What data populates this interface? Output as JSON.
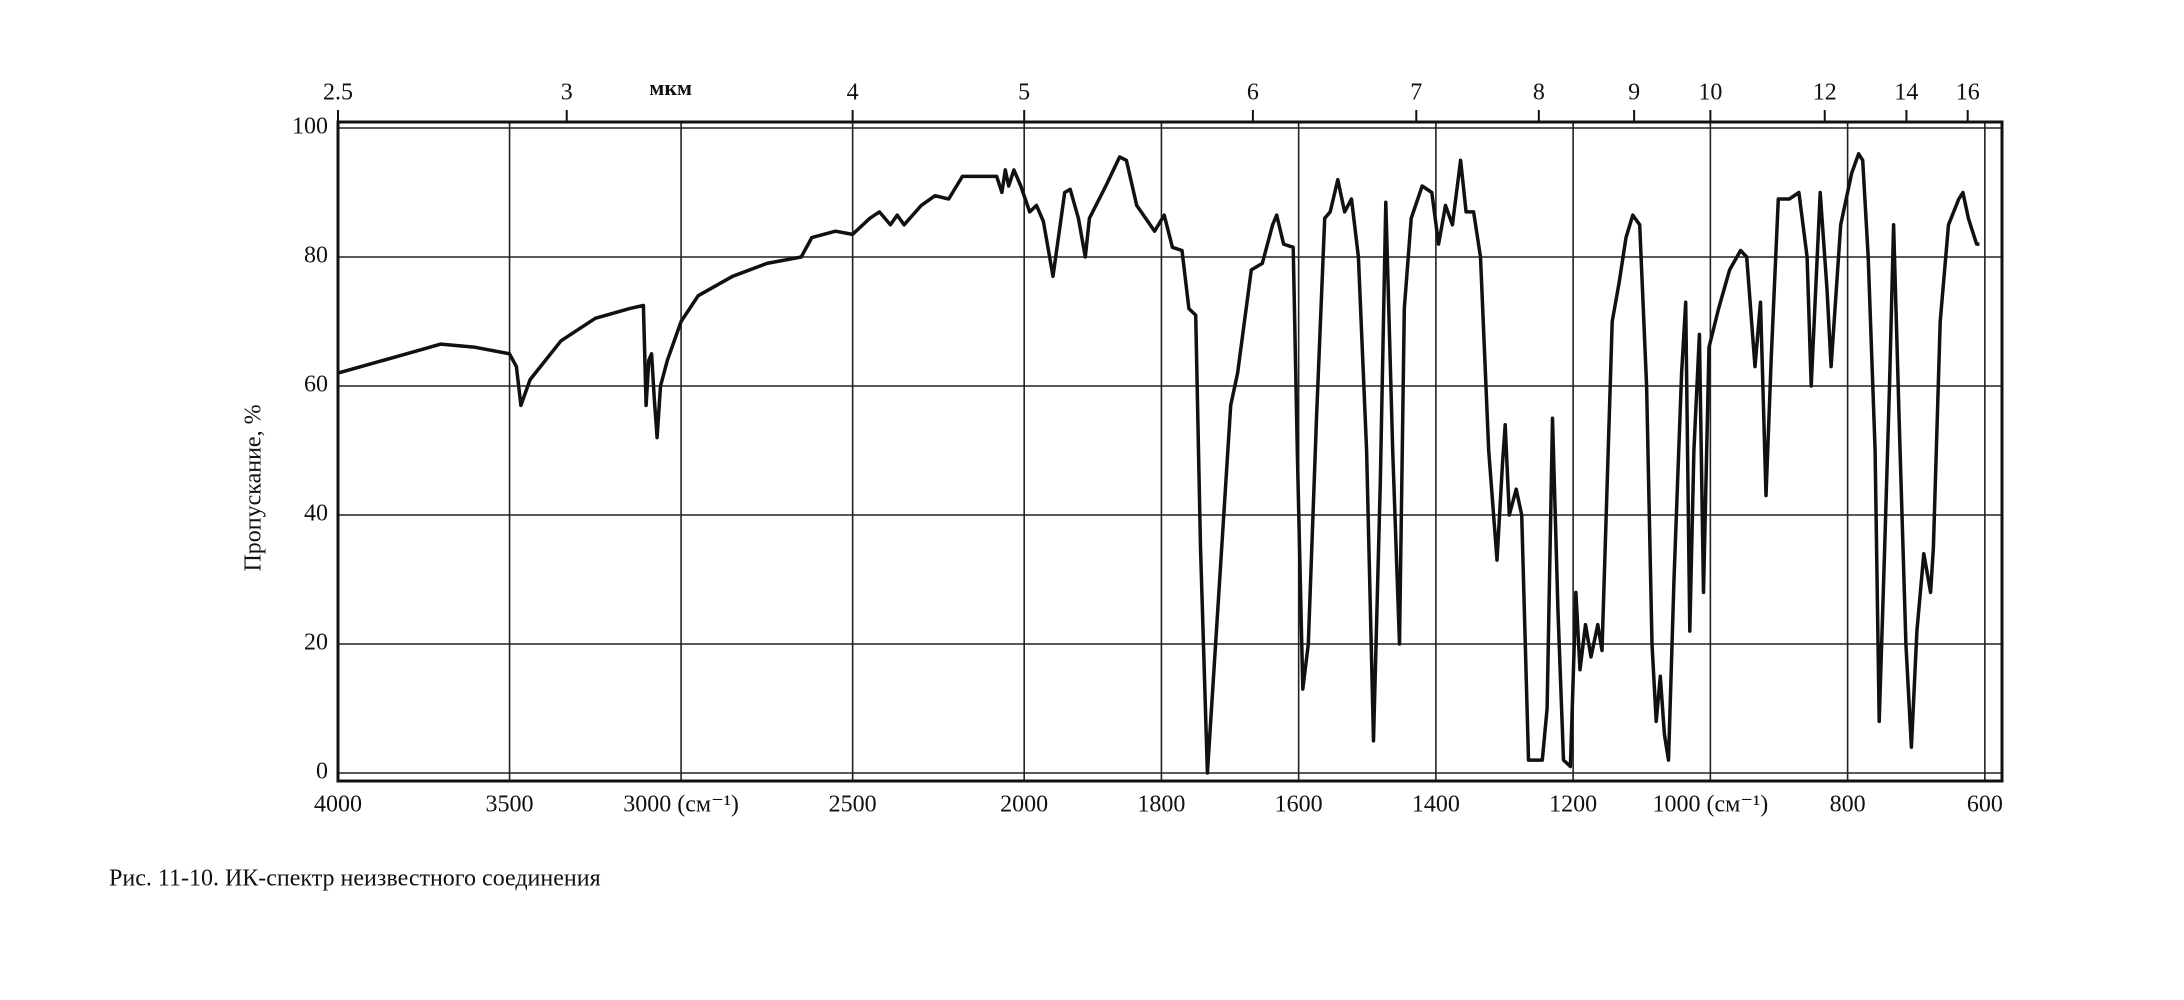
{
  "chart_data": {
    "type": "line",
    "caption": "Рис. 11-10.  ИК-спектр неизвестного соединения",
    "ylabel": "Пропускание, %",
    "xlim": [
      4000,
      575
    ],
    "xscale": {
      "type": "piecewise",
      "break": 2000,
      "factor": 2
    },
    "xticks": [
      4000,
      3500,
      {
        "value": 3000,
        "label": "3000 (см⁻¹)"
      },
      2500,
      2000,
      1800,
      1600,
      1400,
      1200,
      {
        "value": 1000,
        "label": "1000 (см⁻¹)"
      },
      800,
      600
    ],
    "ylim": [
      0,
      100
    ],
    "yticks": [
      0,
      20,
      40,
      60,
      80,
      100
    ],
    "grid": true,
    "color": "#111111",
    "top_axis": {
      "label": "мкм",
      "ticks": [
        2.5,
        3,
        4,
        5,
        6,
        7,
        8,
        9,
        10,
        12,
        14,
        16
      ]
    },
    "x": [
      4000,
      3800,
      3700,
      3600,
      3500,
      3480,
      3467,
      3440,
      3350,
      3250,
      3150,
      3110,
      3102,
      3094,
      3086,
      3078,
      3070,
      3060,
      3040,
      3000,
      2950,
      2850,
      2750,
      2650,
      2619,
      2550,
      2500,
      2450,
      2422,
      2390,
      2370,
      2350,
      2300,
      2260,
      2220,
      2180,
      2080,
      2065,
      2055,
      2045,
      2030,
      2010,
      1992,
      1982,
      1972,
      1958,
      1941,
      1933,
      1921,
      1911,
      1905,
      1881,
      1861,
      1851,
      1836,
      1810,
      1796,
      1784,
      1770,
      1760,
      1750,
      1743,
      1733,
      1727,
      1715,
      1699,
      1689,
      1669,
      1653,
      1638,
      1632,
      1622,
      1608,
      1602,
      1594,
      1586,
      1574,
      1562,
      1554,
      1543,
      1533,
      1523,
      1513,
      1501,
      1491,
      1481,
      1473,
      1463,
      1453,
      1446,
      1436,
      1420,
      1406,
      1396,
      1386,
      1376,
      1364,
      1356,
      1345,
      1335,
      1323,
      1311,
      1303,
      1299,
      1293,
      1283,
      1275,
      1265,
      1245,
      1238,
      1230,
      1222,
      1214,
      1204,
      1196,
      1190,
      1182,
      1174,
      1164,
      1158,
      1143,
      1133,
      1123,
      1113,
      1103,
      1093,
      1085,
      1079,
      1073,
      1067,
      1061,
      1053,
      1042,
      1036,
      1030,
      1024,
      1016,
      1010,
      1002,
      988,
      972,
      956,
      947,
      935,
      927,
      919,
      911,
      901,
      885,
      871,
      859,
      853,
      840,
      830,
      824,
      810,
      794,
      784,
      778,
      770,
      760,
      754,
      746,
      739,
      733,
      725,
      715,
      707,
      699,
      689,
      679,
      675,
      665,
      653,
      638,
      632,
      624,
      612,
      608
    ],
    "values": [
      62,
      65,
      66.5,
      66,
      65,
      63,
      57,
      61,
      67,
      70.5,
      72,
      72.5,
      57,
      64,
      65,
      58,
      52,
      60,
      64,
      70,
      74,
      77,
      79,
      80,
      83,
      84,
      83.5,
      86,
      87,
      85,
      86.5,
      85,
      88,
      89.5,
      89,
      92.5,
      92.5,
      90,
      93.5,
      91,
      93.5,
      91,
      87,
      88,
      85.5,
      77,
      90,
      90.5,
      86,
      80,
      86,
      91,
      95.5,
      95,
      88,
      84,
      86.5,
      81.5,
      81,
      72,
      71,
      35,
      0,
      10,
      30,
      57,
      62,
      78,
      79,
      85,
      86.5,
      82,
      81.5,
      50,
      13,
      20,
      55,
      86,
      87,
      92,
      87,
      89,
      80,
      50,
      5,
      45,
      88.5,
      50,
      20,
      72,
      86,
      91,
      90,
      82,
      88,
      85,
      95,
      87,
      87,
      80,
      50,
      33,
      48,
      54,
      40,
      44,
      40,
      2,
      2,
      10,
      55,
      25,
      2,
      1,
      28,
      16,
      23,
      18,
      23,
      19,
      70,
      76,
      83,
      86.5,
      85,
      60,
      20,
      8,
      15,
      6,
      2,
      30,
      62,
      73,
      22,
      50,
      68,
      28,
      66,
      72,
      78,
      81,
      80,
      63,
      73,
      43,
      65,
      89,
      89,
      90,
      80,
      60,
      90,
      75,
      63,
      85,
      93,
      96,
      95,
      80,
      50,
      8,
      35,
      60,
      85,
      55,
      20,
      4,
      22,
      34,
      28,
      35,
      70,
      85,
      89,
      90,
      86,
      82,
      82
    ]
  }
}
